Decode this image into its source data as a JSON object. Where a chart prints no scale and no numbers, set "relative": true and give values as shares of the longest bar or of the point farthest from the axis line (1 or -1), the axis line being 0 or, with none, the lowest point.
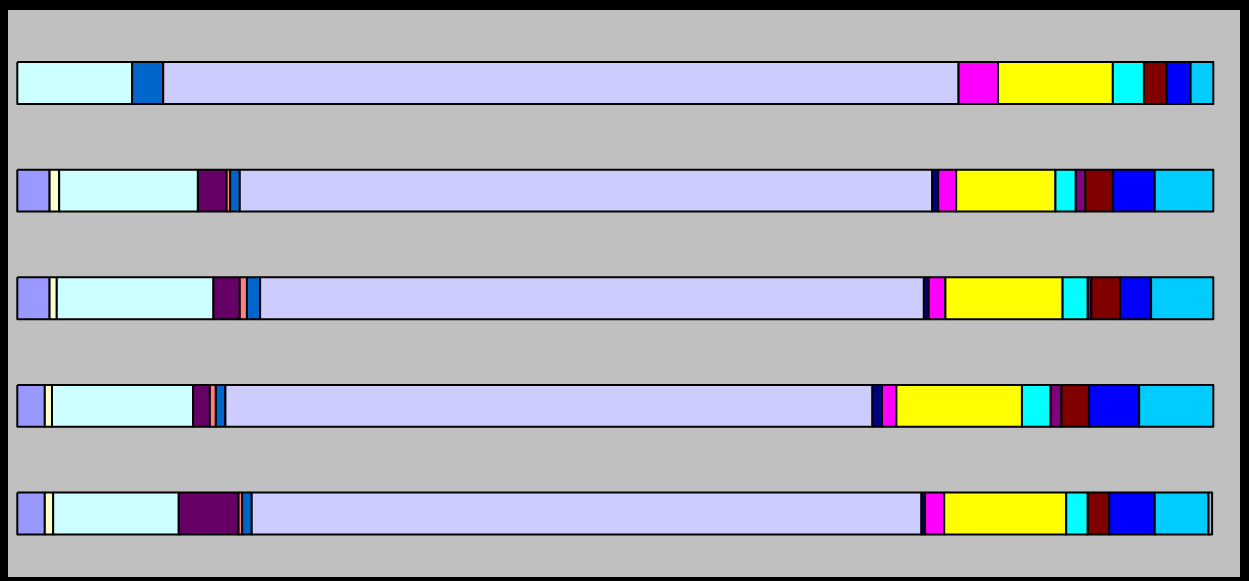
{
  "chart_data": {
    "type": "bar",
    "orientation": "horizontal",
    "stacked": true,
    "relative": true,
    "categories": [
      null,
      null,
      null,
      null,
      null
    ],
    "series": [
      {
        "color": "#9999ff",
        "values": [
          null,
          0.027,
          0.027,
          0.023,
          0.023
        ]
      },
      {
        "color": "#ffffcc",
        "values": [
          null,
          0.008,
          0.006,
          0.006,
          0.007
        ]
      },
      {
        "color": "#ccffff",
        "values": [
          0.096,
          0.116,
          0.131,
          0.118,
          0.105
        ]
      },
      {
        "color": "#660066",
        "values": [
          null,
          0.024,
          0.022,
          0.014,
          0.05
        ]
      },
      {
        "color": "#ff8080",
        "values": [
          null,
          0.003,
          0.006,
          0.005,
          0.003
        ]
      },
      {
        "color": "#0066cc",
        "values": [
          0.026,
          0.008,
          0.011,
          0.008,
          0.008
        ]
      },
      {
        "color": "#ccccff",
        "values": [
          0.665,
          0.579,
          0.555,
          0.541,
          0.56
        ]
      },
      {
        "color": "#000080",
        "values": [
          null,
          0.005,
          0.004,
          0.008,
          0.003
        ]
      },
      {
        "color": "#ff00ff",
        "values": [
          0.033,
          0.015,
          0.014,
          0.012,
          0.016
        ]
      },
      {
        "color": "#ffff00",
        "values": [
          0.096,
          0.083,
          0.098,
          0.105,
          0.102
        ]
      },
      {
        "color": "#00ffff",
        "values": [
          0.026,
          0.017,
          0.021,
          0.024,
          0.018
        ]
      },
      {
        "color": "#800080",
        "values": [
          null,
          0.008,
          0.003,
          0.009,
          null
        ]
      },
      {
        "color": "#800000",
        "values": [
          0.019,
          0.023,
          0.024,
          0.023,
          0.018
        ]
      },
      {
        "color": "#0000ff",
        "values": [
          0.02,
          0.035,
          0.026,
          0.042,
          0.038
        ]
      },
      {
        "color": "#00ccff",
        "values": [
          0.019,
          0.049,
          0.052,
          0.062,
          0.045
        ]
      },
      {
        "color": "#a7b6d7",
        "values": [
          null,
          null,
          null,
          null,
          0.003
        ]
      }
    ]
  }
}
